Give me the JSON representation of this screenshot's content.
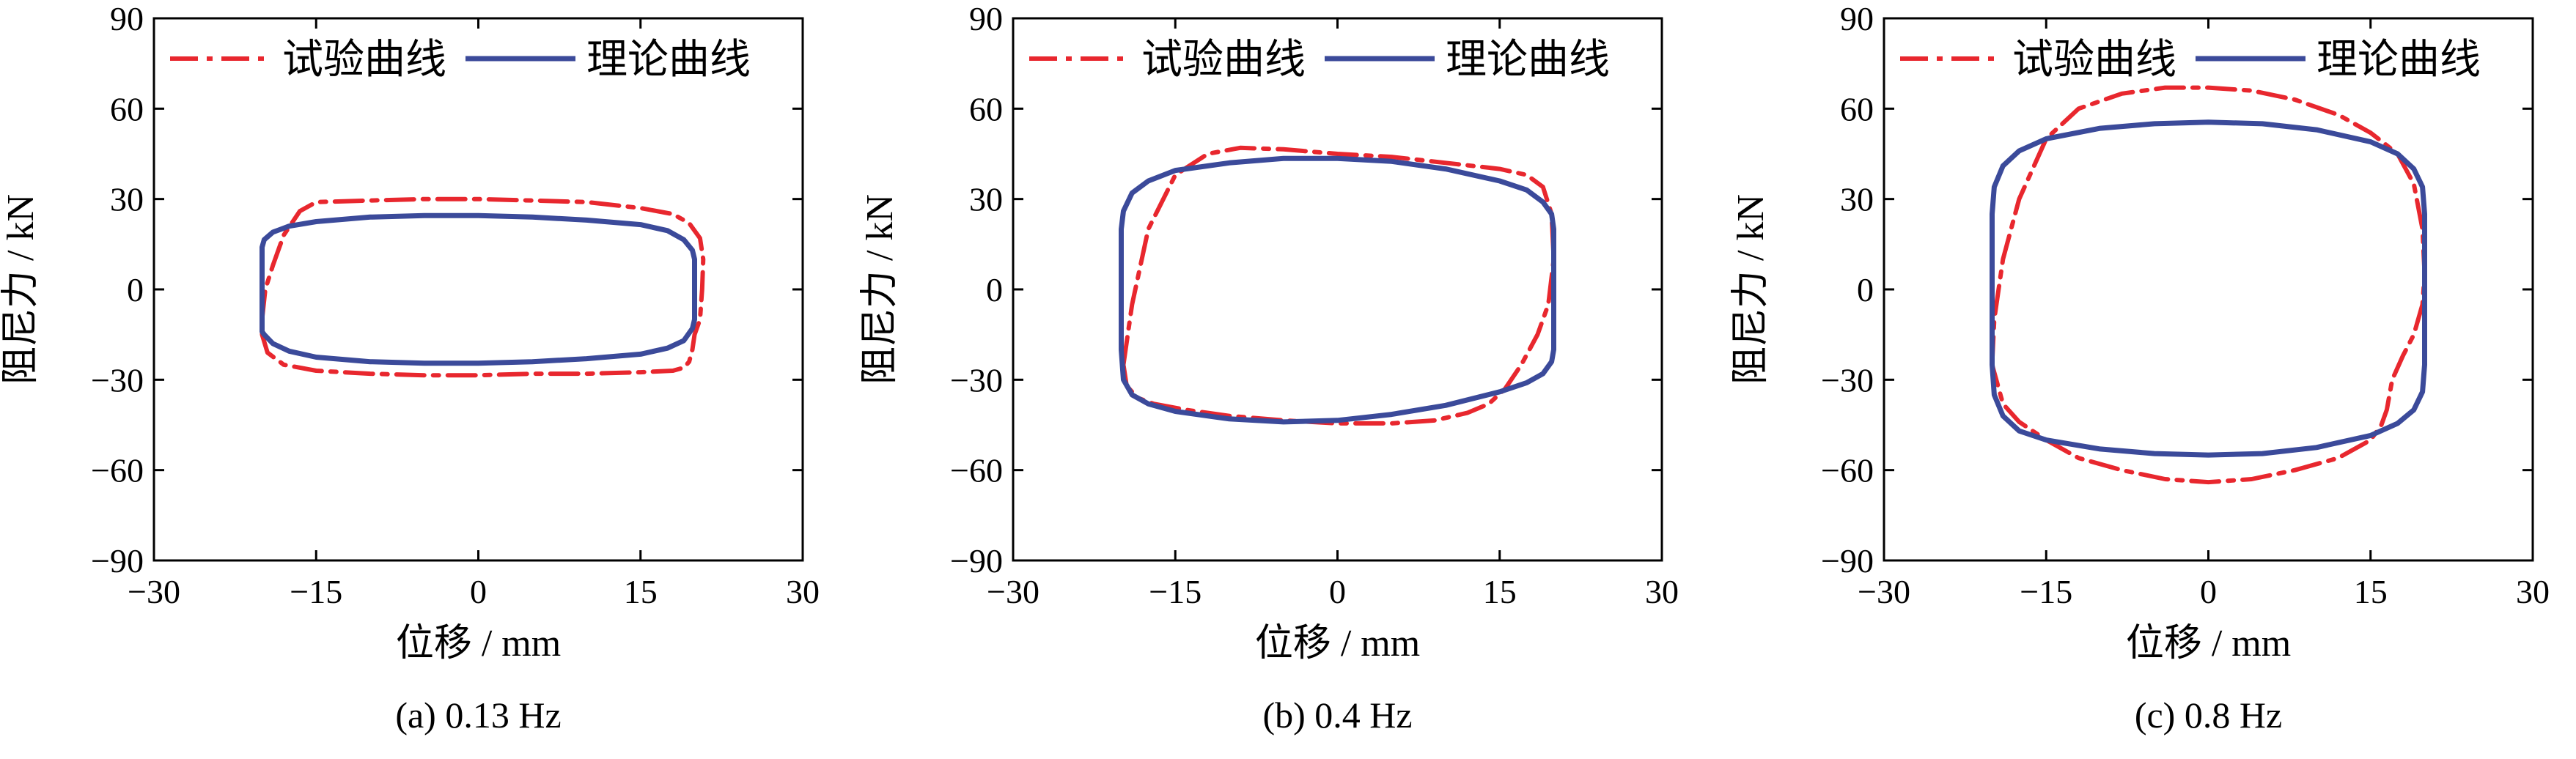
{
  "legend": {
    "experimental_label": "试验曲线",
    "theoretical_label": "理论曲线"
  },
  "colors": {
    "experimental": "#e8272e",
    "theoretical": "#3b4a9a"
  },
  "chart_data": [
    {
      "type": "line",
      "caption": "(a) 0.13 Hz",
      "xlabel": "位移 / mm",
      "ylabel": "阻尼力 / kN",
      "xlim": [
        -30,
        30
      ],
      "ylim": [
        -90,
        90
      ],
      "xticks": [
        -30,
        -15,
        0,
        15,
        30
      ],
      "yticks": [
        -90,
        -60,
        -30,
        0,
        30,
        60,
        90
      ],
      "xtick_labels": [
        "−30",
        "−15",
        "0",
        "15",
        "30"
      ],
      "ytick_labels": [
        "−90",
        "−60",
        "−30",
        "0",
        "30",
        "60",
        "90"
      ],
      "grid": false,
      "legend_position": "top",
      "series": [
        {
          "name": "试验曲线",
          "style": "dash-dot",
          "x": [
            -20,
            -19.7,
            -19,
            -18,
            -16.5,
            -15,
            -10,
            -5,
            0,
            5,
            10,
            15,
            18,
            19.5,
            20.5,
            20.8,
            20.7,
            20.5,
            20,
            19.8,
            19.5,
            19,
            18,
            15,
            10,
            5,
            0,
            -5,
            -10,
            -15,
            -18,
            -19.5,
            -20,
            -20
          ],
          "y": [
            -10,
            0,
            8,
            18,
            26,
            29,
            29.5,
            30,
            30,
            29.5,
            29,
            27,
            25,
            22,
            17,
            10,
            0,
            -10,
            -15,
            -20,
            -24,
            -26,
            -27,
            -27.5,
            -28,
            -28,
            -28.5,
            -28.5,
            -28,
            -27,
            -25,
            -21,
            -15,
            -10
          ]
        },
        {
          "name": "理论曲线",
          "style": "solid",
          "x": [
            -20,
            -20,
            -19.8,
            -19,
            -17.5,
            -15,
            -10,
            -5,
            0,
            5,
            10,
            15,
            17.5,
            19,
            19.8,
            20,
            20,
            20,
            19.8,
            19,
            17.5,
            15,
            10,
            5,
            0,
            -5,
            -10,
            -15,
            -17.5,
            -19,
            -19.8,
            -20
          ],
          "y": [
            0,
            14,
            16.5,
            19,
            21,
            22.5,
            24,
            24.5,
            24.5,
            24,
            23,
            21.5,
            19.5,
            16.5,
            13,
            10,
            0,
            -10,
            -13,
            -17,
            -19.5,
            -21.5,
            -23,
            -24,
            -24.5,
            -24.5,
            -24,
            -22.5,
            -20.5,
            -18,
            -15,
            -14
          ]
        }
      ]
    },
    {
      "type": "line",
      "caption": "(b) 0.4 Hz",
      "xlabel": "位移 / mm",
      "ylabel": "阻尼力 / kN",
      "xlim": [
        -30,
        30
      ],
      "ylim": [
        -90,
        90
      ],
      "xticks": [
        -30,
        -15,
        0,
        15,
        30
      ],
      "yticks": [
        -90,
        -60,
        -30,
        0,
        30,
        60,
        90
      ],
      "xtick_labels": [
        "−30",
        "−15",
        "0",
        "15",
        "30"
      ],
      "ytick_labels": [
        "−90",
        "−60",
        "−30",
        "0",
        "30",
        "60",
        "90"
      ],
      "grid": false,
      "legend_position": "top",
      "series": [
        {
          "name": "试验曲线",
          "style": "dash-dot",
          "x": [
            -19.8,
            -19,
            -17.5,
            -15,
            -12,
            -9,
            -5,
            0,
            5,
            10,
            15,
            17.5,
            19,
            19.8,
            20,
            19.5,
            18.5,
            17,
            15.5,
            14,
            12,
            9,
            5,
            0,
            -5,
            -10,
            -14,
            -17,
            -18.5,
            -19.5,
            -19.8
          ],
          "y": [
            -25,
            -5,
            20,
            38,
            45,
            47,
            46.5,
            45,
            44,
            42,
            40,
            38,
            34,
            25,
            10,
            -5,
            -15,
            -25,
            -33,
            -38,
            -41,
            -43.5,
            -44.5,
            -44.5,
            -43.5,
            -42,
            -40,
            -38,
            -36,
            -32,
            -25
          ]
        },
        {
          "name": "理论曲线",
          "style": "solid",
          "x": [
            -20,
            -20,
            -19.8,
            -19,
            -17.5,
            -15,
            -10,
            -5,
            0,
            5,
            10,
            15,
            17.5,
            19,
            19.8,
            20,
            20,
            20,
            19.8,
            19,
            17.5,
            15,
            10,
            5,
            0,
            -5,
            -10,
            -15,
            -17.5,
            -19,
            -19.8,
            -20
          ],
          "y": [
            -20,
            20,
            26,
            32,
            36,
            39.5,
            42,
            43.5,
            43.5,
            42.5,
            40,
            36,
            33,
            29,
            25,
            20,
            0,
            -20,
            -24,
            -28,
            -31,
            -34,
            -38.5,
            -41.5,
            -43.5,
            -44,
            -43,
            -40.5,
            -38,
            -35,
            -30,
            -20
          ]
        }
      ]
    },
    {
      "type": "line",
      "caption": "(c) 0.8 Hz",
      "xlabel": "位移 / mm",
      "ylabel": "阻尼力 / kN",
      "xlim": [
        -30,
        30
      ],
      "ylim": [
        -90,
        90
      ],
      "xticks": [
        -30,
        -15,
        0,
        15,
        30
      ],
      "yticks": [
        -90,
        -60,
        -30,
        0,
        30,
        60,
        90
      ],
      "xtick_labels": [
        "−30",
        "−15",
        "0",
        "15",
        "30"
      ],
      "ytick_labels": [
        "−90",
        "−60",
        "−30",
        "0",
        "30",
        "60",
        "90"
      ],
      "grid": false,
      "legend_position": "top",
      "series": [
        {
          "name": "试验曲线",
          "style": "dash-dot",
          "x": [
            -20,
            -19.8,
            -19,
            -17.5,
            -15,
            -12,
            -8,
            -4,
            0,
            4,
            8,
            12,
            15,
            17.5,
            19,
            19.8,
            20,
            19.8,
            19,
            18,
            17,
            16.5,
            16,
            15,
            12,
            8,
            4,
            0,
            -4,
            -8,
            -12,
            -15,
            -17.5,
            -19,
            -20
          ],
          "y": [
            -25,
            -10,
            10,
            30,
            50,
            60,
            65,
            67,
            67,
            66,
            63,
            58,
            52,
            45,
            35,
            20,
            5,
            -5,
            -15,
            -22,
            -30,
            -40,
            -45,
            -50,
            -56,
            -60,
            -63,
            -64,
            -63,
            -60,
            -56,
            -50,
            -44,
            -38,
            -25
          ]
        },
        {
          "name": "理论曲线",
          "style": "solid",
          "x": [
            -20,
            -20,
            -19.8,
            -19,
            -17.5,
            -15,
            -10,
            -5,
            0,
            5,
            10,
            15,
            17.5,
            19,
            19.8,
            20,
            20,
            20,
            19.8,
            19,
            17.5,
            15,
            10,
            5,
            0,
            -5,
            -10,
            -15,
            -17.5,
            -19,
            -19.8,
            -20
          ],
          "y": [
            -25,
            25,
            34,
            41,
            46,
            50,
            53.5,
            55,
            55.5,
            55,
            53,
            49,
            45,
            40,
            34,
            25,
            0,
            -25,
            -34,
            -40,
            -44.5,
            -48.5,
            -52.5,
            -54.5,
            -55,
            -54.5,
            -53,
            -50,
            -47,
            -42,
            -35,
            -25
          ]
        }
      ]
    }
  ]
}
